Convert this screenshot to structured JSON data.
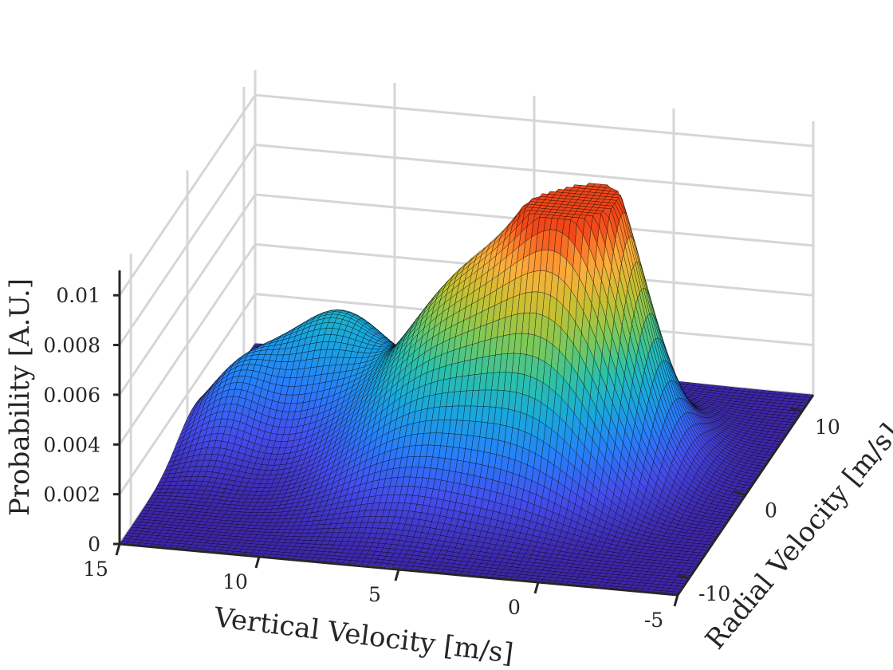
{
  "chart_data": {
    "type": "surface",
    "title": "",
    "xlabel": "Vertical Velocity [m/s]",
    "ylabel": "Radial Velocity [m/s]",
    "zlabel": "Probability [A.U.]",
    "xlim": [
      -5,
      15
    ],
    "ylim": [
      -12,
      12
    ],
    "zlim": [
      0,
      0.011
    ],
    "xticks": [
      15,
      10,
      5,
      0,
      -5
    ],
    "xtick_labels": [
      "15",
      "10",
      "5",
      "0",
      "-5"
    ],
    "yticks": [
      -10,
      0,
      10
    ],
    "ytick_labels": [
      "-10",
      "0",
      "10"
    ],
    "zticks": [
      0,
      0.002,
      0.004,
      0.006,
      0.008,
      0.01
    ],
    "ztick_labels": [
      "0",
      "0.002",
      "0.004",
      "0.006",
      "0.008",
      "0.01"
    ],
    "colormap": "parula",
    "grid": true,
    "surface_components": [
      {
        "vertical_velocity": 0.5,
        "radial_velocity": 1.5,
        "peak": 0.0105
      },
      {
        "vertical_velocity": 2.5,
        "radial_velocity": -1,
        "peak": 0.0052
      },
      {
        "vertical_velocity": 6,
        "radial_velocity": -2,
        "peak": 0.0042
      },
      {
        "vertical_velocity": 5,
        "radial_velocity": 2,
        "peak": 0.0038
      },
      {
        "vertical_velocity": 10.5,
        "radial_velocity": 4,
        "peak": 0.0042
      },
      {
        "vertical_velocity": 13.5,
        "radial_velocity": 1,
        "peak": 0.0022
      }
    ]
  }
}
